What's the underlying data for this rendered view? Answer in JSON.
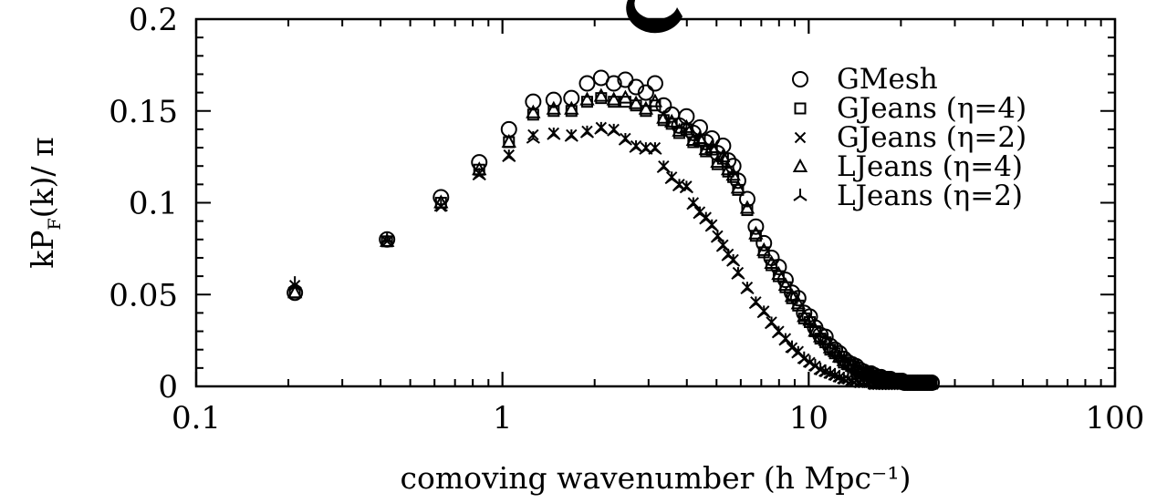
{
  "chart_data": {
    "type": "scatter",
    "xscale": "log",
    "xlim": [
      0.1,
      100
    ],
    "ylim": [
      0,
      0.2
    ],
    "xlabel": "comoving wavenumber (h Mpc⁻¹)",
    "ylabel_parts": [
      "kP",
      "F",
      "(k)/ π"
    ],
    "x_ticks": [
      {
        "value": 0.1,
        "label": "0.1"
      },
      {
        "value": 1,
        "label": "1"
      },
      {
        "value": 10,
        "label": "10"
      },
      {
        "value": 100,
        "label": "100"
      }
    ],
    "y_ticks": [
      {
        "value": 0,
        "label": "0"
      },
      {
        "value": 0.05,
        "label": "0.05"
      },
      {
        "value": 0.1,
        "label": "0.1"
      },
      {
        "value": 0.15,
        "label": "0.15"
      },
      {
        "value": 0.2,
        "label": "0.2"
      }
    ],
    "legend_position": "top-right",
    "grid": false,
    "series": [
      {
        "name": "GMesh",
        "marker": "circle",
        "x": [
          0.21,
          0.42,
          0.63,
          0.84,
          1.05,
          1.26,
          1.47,
          1.68,
          1.89,
          2.1,
          2.31,
          2.52,
          2.73,
          2.94,
          3.15,
          3.36,
          3.57,
          3.78,
          3.99,
          4.2,
          4.41,
          4.62,
          4.83,
          5.04,
          5.25,
          5.46,
          5.67,
          5.88,
          6.3,
          6.72,
          7.14,
          7.56,
          7.98,
          8.4,
          8.82,
          9.24,
          9.66,
          10.08,
          10.5,
          10.92,
          11.34,
          11.76,
          12.18,
          12.6,
          13.02,
          13.44,
          13.86,
          14.28,
          14.7,
          15.12,
          15.54,
          15.96,
          16.38,
          16.8,
          17.22,
          17.64,
          18.06,
          18.48,
          18.9,
          19.32,
          19.74,
          20.16,
          20.58,
          21.0,
          21.42,
          21.84,
          22.26,
          22.68,
          23.1,
          23.52,
          23.94,
          24.36,
          24.78,
          25.2
        ],
        "y": [
          0.051,
          0.08,
          0.103,
          0.122,
          0.14,
          0.155,
          0.156,
          0.157,
          0.165,
          0.168,
          0.165,
          0.167,
          0.163,
          0.16,
          0.165,
          0.153,
          0.148,
          0.142,
          0.147,
          0.138,
          0.141,
          0.133,
          0.135,
          0.127,
          0.131,
          0.123,
          0.12,
          0.112,
          0.102,
          0.087,
          0.078,
          0.07,
          0.065,
          0.058,
          0.051,
          0.048,
          0.04,
          0.038,
          0.032,
          0.028,
          0.027,
          0.022,
          0.02,
          0.018,
          0.015,
          0.013,
          0.012,
          0.011,
          0.009,
          0.008,
          0.007,
          0.007,
          0.006,
          0.005,
          0.005,
          0.004,
          0.004,
          0.004,
          0.003,
          0.003,
          0.003,
          0.003,
          0.002,
          0.002,
          0.002,
          0.002,
          0.002,
          0.002,
          0.002,
          0.002,
          0.002,
          0.002,
          0.002,
          0.002
        ]
      },
      {
        "name": "GJeans (η=4)",
        "marker": "square",
        "x": [
          0.21,
          0.42,
          0.63,
          0.84,
          1.05,
          1.26,
          1.47,
          1.68,
          1.89,
          2.1,
          2.31,
          2.52,
          2.73,
          2.94,
          3.15,
          3.36,
          3.57,
          3.78,
          3.99,
          4.2,
          4.41,
          4.62,
          4.83,
          5.04,
          5.25,
          5.46,
          5.67,
          5.88,
          6.3,
          6.72,
          7.14,
          7.56,
          7.98,
          8.4,
          8.82,
          9.24,
          9.66,
          10.08,
          10.5,
          10.92,
          11.34,
          11.76,
          12.18,
          12.6,
          13.02,
          13.44,
          13.86,
          14.28,
          14.7,
          15.12,
          15.54,
          15.96,
          16.38,
          16.8,
          17.22,
          17.64,
          18.06,
          18.48,
          18.9,
          19.32,
          19.74,
          20.16,
          20.58,
          21.0,
          21.42,
          21.84,
          22.26,
          22.68,
          23.1,
          23.52,
          23.94,
          24.36,
          24.78,
          25.2
        ],
        "y": [
          0.051,
          0.079,
          0.1,
          0.118,
          0.133,
          0.148,
          0.15,
          0.15,
          0.155,
          0.157,
          0.155,
          0.155,
          0.153,
          0.15,
          0.153,
          0.145,
          0.143,
          0.138,
          0.14,
          0.133,
          0.134,
          0.128,
          0.129,
          0.121,
          0.124,
          0.117,
          0.114,
          0.107,
          0.096,
          0.082,
          0.073,
          0.066,
          0.06,
          0.054,
          0.048,
          0.044,
          0.037,
          0.035,
          0.03,
          0.026,
          0.024,
          0.02,
          0.018,
          0.016,
          0.013,
          0.012,
          0.011,
          0.009,
          0.008,
          0.007,
          0.006,
          0.006,
          0.005,
          0.005,
          0.004,
          0.004,
          0.004,
          0.003,
          0.003,
          0.003,
          0.003,
          0.002,
          0.002,
          0.002,
          0.002,
          0.002,
          0.002,
          0.002,
          0.002,
          0.002,
          0.002,
          0.002,
          0.002,
          0.002
        ]
      },
      {
        "name": "GJeans (η=2)",
        "marker": "cross",
        "x": [
          0.21,
          0.42,
          0.63,
          0.84,
          1.05,
          1.26,
          1.47,
          1.68,
          1.89,
          2.1,
          2.31,
          2.52,
          2.73,
          2.94,
          3.15,
          3.36,
          3.57,
          3.78,
          3.99,
          4.2,
          4.41,
          4.62,
          4.83,
          5.04,
          5.25,
          5.46,
          5.67,
          5.88,
          6.3,
          6.72,
          7.14,
          7.56,
          7.98,
          8.4,
          8.82,
          9.24,
          9.66,
          10.08,
          10.5,
          10.92,
          11.34,
          11.76,
          12.18,
          12.6,
          13.02,
          13.44,
          13.86,
          14.28,
          14.7,
          15.12,
          15.54,
          15.96,
          16.38,
          16.8,
          17.22,
          17.64,
          18.06,
          18.48,
          18.9,
          19.32,
          19.74,
          20.16,
          20.58,
          21.0,
          21.42,
          21.84,
          22.26,
          22.68,
          23.1,
          23.52,
          23.94,
          24.36,
          24.78,
          25.2
        ],
        "y": [
          0.055,
          0.079,
          0.098,
          0.116,
          0.126,
          0.137,
          0.138,
          0.137,
          0.139,
          0.141,
          0.14,
          0.135,
          0.131,
          0.13,
          0.13,
          0.12,
          0.114,
          0.11,
          0.109,
          0.1,
          0.095,
          0.092,
          0.088,
          0.082,
          0.077,
          0.072,
          0.069,
          0.062,
          0.054,
          0.046,
          0.041,
          0.035,
          0.03,
          0.026,
          0.021,
          0.019,
          0.015,
          0.013,
          0.011,
          0.009,
          0.008,
          0.007,
          0.006,
          0.005,
          0.004,
          0.004,
          0.003,
          0.003,
          0.002,
          0.002,
          0.002,
          0.002,
          0.001,
          0.001,
          0.001,
          0.001,
          0.001,
          0.001,
          0.001,
          0.001,
          0.001,
          0.001,
          0.001,
          0.001,
          0.001,
          0.001,
          0.001,
          0.001,
          0.001,
          0.001,
          0.001,
          0.001,
          0.001,
          0.001
        ]
      },
      {
        "name": "LJeans (η=4)",
        "marker": "triangle",
        "x": [
          0.21,
          0.42,
          0.63,
          0.84,
          1.05,
          1.26,
          1.47,
          1.68,
          1.89,
          2.1,
          2.31,
          2.52,
          2.73,
          2.94,
          3.15,
          3.36,
          3.57,
          3.78,
          3.99,
          4.2,
          4.41,
          4.62,
          4.83,
          5.04,
          5.25,
          5.46,
          5.67,
          5.88,
          6.3,
          6.72,
          7.14,
          7.56,
          7.98,
          8.4,
          8.82,
          9.24,
          9.66,
          10.08,
          10.5,
          10.92,
          11.34,
          11.76,
          12.18,
          12.6,
          13.02,
          13.44,
          13.86,
          14.28,
          14.7,
          15.12,
          15.54,
          15.96,
          16.38,
          16.8,
          17.22,
          17.64,
          18.06,
          18.48,
          18.9,
          19.32,
          19.74,
          20.16,
          20.58,
          21.0,
          21.42,
          21.84,
          22.26,
          22.68,
          23.1,
          23.52,
          23.94,
          24.36,
          24.78,
          25.2
        ],
        "y": [
          0.051,
          0.079,
          0.1,
          0.118,
          0.133,
          0.149,
          0.151,
          0.151,
          0.156,
          0.158,
          0.156,
          0.157,
          0.154,
          0.151,
          0.155,
          0.146,
          0.144,
          0.139,
          0.141,
          0.134,
          0.135,
          0.129,
          0.13,
          0.122,
          0.125,
          0.118,
          0.115,
          0.108,
          0.097,
          0.083,
          0.074,
          0.067,
          0.061,
          0.055,
          0.049,
          0.045,
          0.038,
          0.036,
          0.03,
          0.027,
          0.025,
          0.021,
          0.019,
          0.016,
          0.014,
          0.012,
          0.011,
          0.01,
          0.008,
          0.007,
          0.007,
          0.006,
          0.005,
          0.005,
          0.004,
          0.004,
          0.004,
          0.003,
          0.003,
          0.003,
          0.003,
          0.002,
          0.002,
          0.002,
          0.002,
          0.002,
          0.002,
          0.002,
          0.002,
          0.002,
          0.002,
          0.002,
          0.002,
          0.002
        ]
      },
      {
        "name": "LJeans (η=2)",
        "marker": "tripod",
        "x": [
          0.21,
          0.42,
          0.63,
          0.84,
          1.05,
          1.26,
          1.47,
          1.68,
          1.89,
          2.1,
          2.31,
          2.52,
          2.73,
          2.94,
          3.15,
          3.36,
          3.57,
          3.78,
          3.99,
          4.2,
          4.41,
          4.62,
          4.83,
          5.04,
          5.25,
          5.46,
          5.67,
          5.88,
          6.3,
          6.72,
          7.14,
          7.56,
          7.98,
          8.4,
          8.82,
          9.24,
          9.66,
          10.08,
          10.5,
          10.92,
          11.34,
          11.76,
          12.18,
          12.6,
          13.02,
          13.44,
          13.86,
          14.28,
          14.7,
          15.12,
          15.54,
          15.96,
          16.38,
          16.8,
          17.22,
          17.64,
          18.06,
          18.48,
          18.9,
          19.32,
          19.74,
          20.16,
          20.58,
          21.0,
          21.42,
          21.84,
          22.26,
          22.68,
          23.1,
          23.52,
          23.94,
          24.36,
          24.78,
          25.2
        ],
        "y": [
          0.056,
          0.08,
          0.098,
          0.115,
          0.125,
          0.135,
          0.137,
          0.136,
          0.138,
          0.14,
          0.139,
          0.134,
          0.13,
          0.129,
          0.129,
          0.119,
          0.113,
          0.109,
          0.108,
          0.099,
          0.094,
          0.091,
          0.087,
          0.081,
          0.076,
          0.071,
          0.068,
          0.061,
          0.053,
          0.045,
          0.04,
          0.034,
          0.029,
          0.025,
          0.021,
          0.018,
          0.015,
          0.013,
          0.011,
          0.009,
          0.008,
          0.007,
          0.006,
          0.005,
          0.004,
          0.004,
          0.003,
          0.003,
          0.002,
          0.002,
          0.002,
          0.002,
          0.001,
          0.001,
          0.001,
          0.001,
          0.001,
          0.001,
          0.001,
          0.001,
          0.001,
          0.001,
          0.001,
          0.001,
          0.001,
          0.001,
          0.001,
          0.001,
          0.001,
          0.001,
          0.001,
          0.001,
          0.001,
          0.001
        ]
      }
    ]
  }
}
